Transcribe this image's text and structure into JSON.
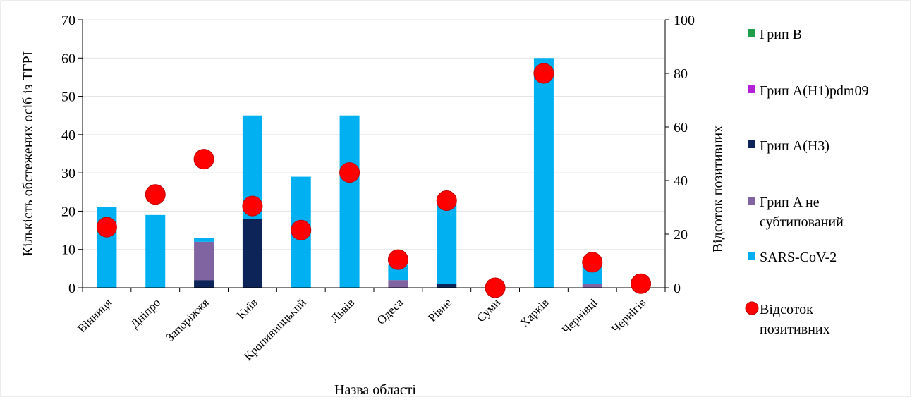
{
  "chart_data": {
    "type": "bar",
    "categories": [
      "Вінниця",
      "Дніпро",
      "Запоріжжя",
      "Київ",
      "Кропивницький",
      "Львів",
      "Одеса",
      "Рівне",
      "Суми",
      "Харків",
      "Чернівці",
      "Чернігів"
    ],
    "series": [
      {
        "name": "Грип B",
        "color": "#1e9e4a",
        "values": [
          0,
          0,
          0,
          0,
          0,
          0,
          0,
          0,
          0,
          0,
          0,
          0
        ]
      },
      {
        "name": "Грип A(H1)pdm09",
        "color": "#b422d6",
        "values": [
          0,
          0,
          0,
          0,
          0,
          0,
          0,
          0,
          0,
          0,
          0,
          0
        ]
      },
      {
        "name": "Грип A(H3)",
        "color": "#0d2459",
        "values": [
          0,
          0,
          2,
          18,
          0,
          0,
          0,
          1,
          0,
          0,
          0,
          0
        ]
      },
      {
        "name": "Грип A не субтипований",
        "color": "#8064a2",
        "values": [
          0,
          0,
          10,
          0,
          0,
          0,
          2,
          0,
          0,
          0,
          1,
          0
        ]
      },
      {
        "name": "SARS-CoV-2",
        "color": "#00b0f0",
        "values": [
          21,
          19,
          1,
          27,
          29,
          45,
          4,
          22,
          0,
          60,
          5,
          0
        ]
      }
    ],
    "line_series": {
      "name": "Відсоток позитивних",
      "color": "#ff0000",
      "axis": "right",
      "values": [
        22.6,
        34.8,
        48.0,
        30.5,
        21.5,
        43.0,
        10.5,
        32.5,
        0,
        80.0,
        9.5,
        1.5
      ]
    },
    "xlabel": "Назва області",
    "ylabel": "Кількість обстежених осіб із ТГРІ",
    "y2label": "Відсоток позитивних",
    "ylim": [
      0,
      70
    ],
    "y2lim": [
      0,
      100
    ],
    "yticks": [
      "0",
      "10",
      "20",
      "30",
      "40",
      "50",
      "60",
      "70"
    ],
    "y2ticks": [
      "0",
      "20",
      "40",
      "60",
      "80",
      "100"
    ],
    "legend": {
      "placement": "right",
      "entries": [
        {
          "lines": [
            "Грип B"
          ]
        },
        {
          "lines": [
            "Грип A(H1)pdm09"
          ]
        },
        {
          "lines": [
            "Грип A(H3)"
          ]
        },
        {
          "lines": [
            "Грип A не",
            "субтипований"
          ]
        },
        {
          "lines": [
            "SARS-CoV-2"
          ]
        },
        {
          "lines": [
            "Відсоток",
            "позитивних"
          ]
        }
      ]
    },
    "grid": true
  }
}
